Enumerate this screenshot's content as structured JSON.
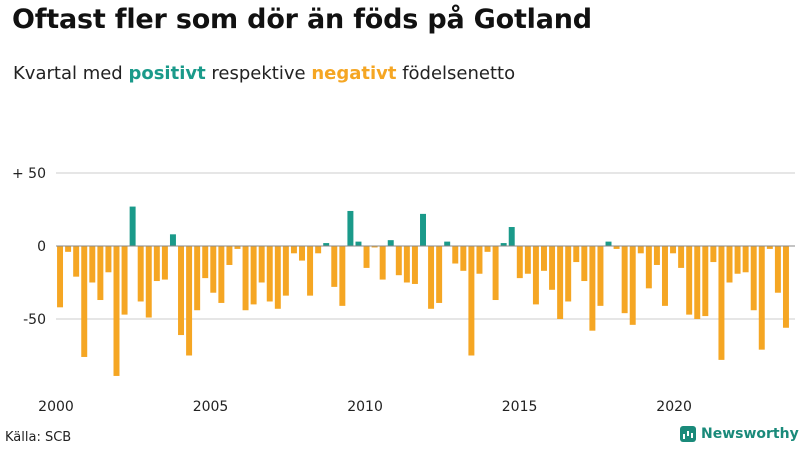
{
  "title": "Oftast fler som dör än föds på Gotland",
  "subtitle": {
    "prefix": "Kvartal med ",
    "positive_word": "positivt",
    "middle": " respektive ",
    "negative_word": "negativt",
    "suffix": " födelsenetto"
  },
  "source": "Källa: SCB",
  "brand": "Newsworthy",
  "colors": {
    "positive": "#1a9a8a",
    "negative": "#f5a623",
    "grid": "#cccccc",
    "zero": "#888888"
  },
  "chart_data": {
    "type": "bar",
    "title": "Oftast fler som dör än föds på Gotland",
    "xlabel": "",
    "ylabel": "",
    "ylim": [
      -95,
      55
    ],
    "y_ticks": [
      {
        "value": 50,
        "label": "+ 50"
      },
      {
        "value": 0,
        "label": "0"
      },
      {
        "value": -50,
        "label": "-50"
      }
    ],
    "x_range": [
      2000.0,
      2023.75
    ],
    "x_ticks": [
      2000,
      2005,
      2010,
      2015,
      2020
    ],
    "series": [
      {
        "name": "Födelsenetto per kvartal",
        "start_year": 2000,
        "frequency": "quarterly",
        "values": [
          -42,
          -4,
          -21,
          -76,
          -25,
          -37,
          -18,
          -89,
          -47,
          27,
          -38,
          -49,
          -24,
          -23,
          8,
          -61,
          -75,
          -44,
          -22,
          -32,
          -39,
          -13,
          -2,
          -44,
          -40,
          -25,
          -38,
          -43,
          -34,
          -5,
          -10,
          -34,
          -5,
          2,
          -28,
          -41,
          24,
          3,
          -15,
          -1,
          -23,
          4,
          -20,
          -25,
          -26,
          22,
          -43,
          -39,
          3,
          -12,
          -17,
          -75,
          -19,
          -4,
          -37,
          2,
          13,
          -22,
          -19,
          -40,
          -17,
          -30,
          -50,
          -38,
          -11,
          -24,
          -58,
          -41,
          3,
          -2,
          -46,
          -54,
          -5,
          -29,
          -13,
          -41,
          -5,
          -15,
          -47,
          -50,
          -48,
          -11,
          -78,
          -25,
          -19,
          -18,
          -44,
          -71,
          -2,
          -32,
          -56
        ]
      }
    ]
  }
}
